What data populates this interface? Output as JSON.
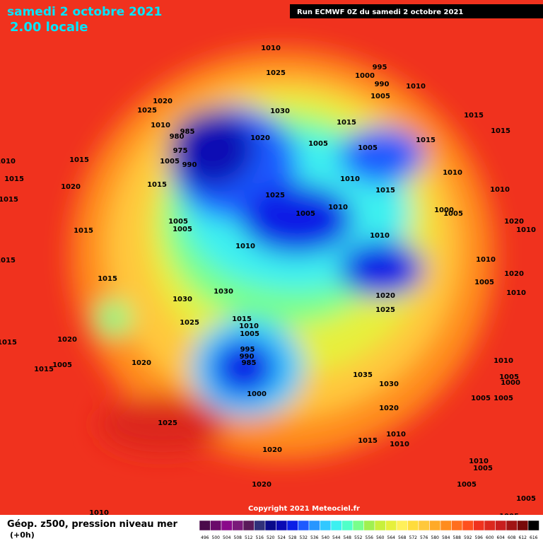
{
  "header": {
    "date": "samedi 2 octobre 2021",
    "time": "2.00 locale",
    "run": "Run ECMWF 0Z du samedi 2 octobre 2021"
  },
  "map": {
    "pressure_labels": [
      1010,
      1025,
      995,
      1000,
      990,
      1005,
      1010,
      1020,
      1025,
      1030,
      1015,
      1015,
      1015,
      1010,
      985,
      980,
      975,
      990,
      1005,
      1020,
      1005,
      1005,
      1015,
      1015,
      1010,
      1015,
      1010,
      1020,
      1015,
      1015,
      1010,
      1010,
      1025,
      1005,
      1010,
      1000,
      1005,
      1020,
      1010,
      1015,
      1015,
      1005,
      1005,
      1010,
      1010,
      1010,
      1015,
      1015,
      1020,
      1005,
      1010,
      1030,
      1030,
      1020,
      1025,
      1015,
      1010,
      1025,
      1005,
      1020,
      1015,
      995,
      990,
      985,
      1020,
      1015,
      1005,
      1035,
      1030,
      1000,
      1020,
      1010,
      1005,
      1000,
      1005,
      1005,
      1025,
      1010,
      1010,
      1015,
      1020,
      1010,
      1005,
      1005,
      1005,
      1020,
      1010,
      1005
    ],
    "copyright": "Copyright 2021 Meteociel.fr"
  },
  "footer": {
    "title": "Géop. z500, pression niveau mer",
    "step": "(+0h)"
  },
  "scale": {
    "labels": [
      496,
      500,
      504,
      508,
      512,
      516,
      520,
      524,
      528,
      532,
      536,
      540,
      544,
      548,
      552,
      556,
      560,
      564,
      568,
      572,
      576,
      580,
      584,
      588,
      592,
      596,
      600,
      604,
      608,
      612,
      616
    ],
    "colors": [
      "#4b0a4b",
      "#6a0a6a",
      "#8a0a8a",
      "#7a1a7a",
      "#5a1a5a",
      "#30307a",
      "#0a0a8a",
      "#0a0ab4",
      "#0a1ee6",
      "#1e5aff",
      "#2896ff",
      "#32c8ff",
      "#3cf0f0",
      "#50ffc8",
      "#78ff8c",
      "#a0f050",
      "#c8f03c",
      "#e6f03c",
      "#fff05a",
      "#ffdc3c",
      "#ffc83c",
      "#ffaa28",
      "#ff8c1e",
      "#ff6e1e",
      "#ff501e",
      "#f0321e",
      "#dc281e",
      "#c81e1e",
      "#a01414",
      "#780a0a",
      "#000000"
    ]
  }
}
